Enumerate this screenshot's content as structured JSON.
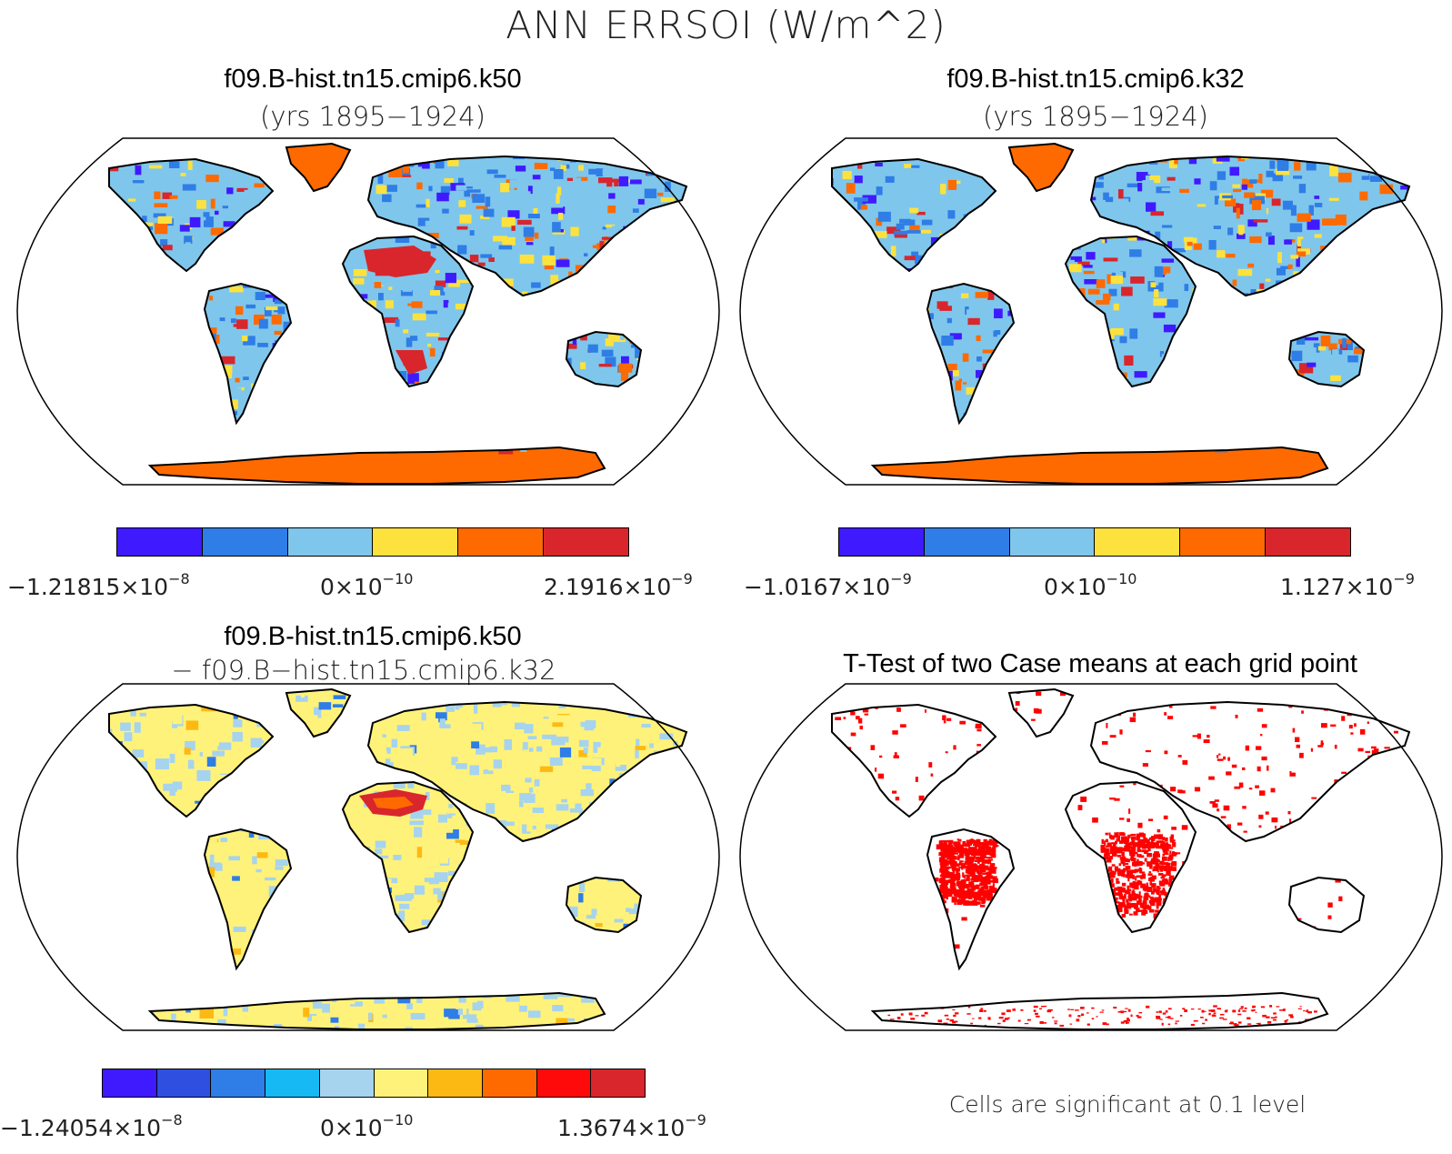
{
  "title": "ANN ERRSOI (W/m^2)",
  "panels": [
    {
      "title": "f09.B-hist.tn15.cmip6.k50",
      "subtitle": "(yrs 1895−1924)",
      "colorbar": {
        "colors": [
          "#3f1aff",
          "#2f7de6",
          "#7fc6ec",
          "#fde23d",
          "#ff6a00",
          "#d8262c"
        ],
        "ticks": [
          {
            "mantissa": "−1.21815×10",
            "exponent": "−8"
          },
          {
            "mantissa": "0×10",
            "exponent": "−10"
          },
          {
            "mantissa": "2.1916×10",
            "exponent": "−9"
          }
        ]
      }
    },
    {
      "title": "f09.B-hist.tn15.cmip6.k32",
      "subtitle": "(yrs 1895−1924)",
      "colorbar": {
        "colors": [
          "#3f1aff",
          "#2f7de6",
          "#7fc6ec",
          "#fde23d",
          "#ff6a00",
          "#d8262c"
        ],
        "ticks": [
          {
            "mantissa": "−1.0167×10",
            "exponent": "−9"
          },
          {
            "mantissa": "0×10",
            "exponent": "−10"
          },
          {
            "mantissa": "1.127×10",
            "exponent": "−9"
          }
        ]
      }
    },
    {
      "title": "f09.B-hist.tn15.cmip6.k50",
      "subtitle": "− f09.B−hist.tn15.cmip6.k32",
      "colorbar": {
        "colors": [
          "#3f1aff",
          "#2f4fe0",
          "#2f7de6",
          "#17b9f5",
          "#a6d3ee",
          "#fff27a",
          "#fdb913",
          "#ff6a00",
          "#ff0a0a",
          "#d8262c"
        ],
        "ticks": [
          {
            "mantissa": "−1.24054×10",
            "exponent": "−8"
          },
          {
            "mantissa": "0×10",
            "exponent": "−10"
          },
          {
            "mantissa": "1.3674×10",
            "exponent": "−9"
          }
        ]
      }
    },
    {
      "title": "T-Test of two Case means at each grid point",
      "note": "Cells are significant at 0.1 level",
      "sig_color": "#ff0000"
    }
  ]
}
